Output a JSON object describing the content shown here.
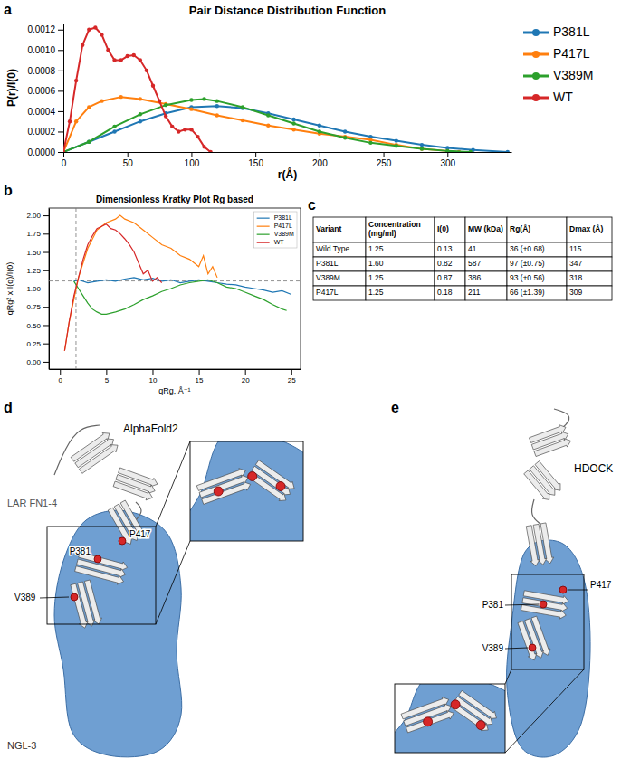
{
  "chart_data": [
    {
      "panel": "a",
      "type": "line",
      "title": "Pair Distance Distribution Function",
      "x_label": "r(Å)",
      "y_label": "P(r)/I(0)",
      "xlim": [
        0,
        350
      ],
      "xticks": [
        0,
        50,
        100,
        150,
        200,
        250,
        300
      ],
      "ylim": [
        0,
        0.00126
      ],
      "yticks": [
        {
          "value": 0,
          "label": "0.0000"
        },
        {
          "value": 0.0002,
          "label": "0.0002"
        },
        {
          "value": 0.0004,
          "label": "0.0004"
        },
        {
          "value": 0.0006,
          "label": "0.0006"
        },
        {
          "value": 0.0008,
          "label": "0.0008"
        },
        {
          "value": 0.001,
          "label": "0.0010"
        },
        {
          "value": 0.0012,
          "label": "0.0012"
        }
      ],
      "grid": false,
      "legend": "right",
      "marker": "circle",
      "series": [
        {
          "name": "P381L",
          "color": "#1f77b4",
          "x": [
            0,
            20,
            40,
            60,
            80,
            100,
            120,
            140,
            160,
            180,
            200,
            220,
            240,
            260,
            280,
            300,
            320,
            347
          ],
          "values": [
            0,
            0.0001,
            0.0002,
            0.0003,
            0.00038,
            0.00044,
            0.00045,
            0.00043,
            0.00038,
            0.00032,
            0.00026,
            0.0002,
            0.00015,
            0.00011,
            7e-05,
            4e-05,
            2e-05,
            0
          ]
        },
        {
          "name": "P417L",
          "color": "#ff7f0e",
          "x": [
            0,
            10,
            20,
            30,
            45,
            60,
            80,
            100,
            120,
            140,
            160,
            180,
            200,
            220,
            240,
            260,
            280,
            300,
            309
          ],
          "values": [
            0,
            0.0003,
            0.00044,
            0.0005,
            0.00054,
            0.00052,
            0.00047,
            0.00042,
            0.00036,
            0.00031,
            0.00026,
            0.00022,
            0.00018,
            0.00015,
            0.00012,
            7e-05,
            3e-05,
            1e-05,
            0
          ]
        },
        {
          "name": "V389M",
          "color": "#2ca02c",
          "x": [
            0,
            20,
            40,
            60,
            80,
            100,
            110,
            120,
            140,
            160,
            180,
            200,
            220,
            240,
            260,
            280,
            300,
            318
          ],
          "values": [
            0,
            0.0001,
            0.00025,
            0.00037,
            0.00046,
            0.00051,
            0.00052,
            0.0005,
            0.00044,
            0.00036,
            0.00028,
            0.0002,
            0.00014,
            9e-05,
            6e-05,
            3e-05,
            1e-05,
            0
          ]
        },
        {
          "name": "WT",
          "color": "#d62728",
          "x": [
            0,
            5,
            10,
            15,
            20,
            25,
            30,
            35,
            40,
            45,
            50,
            55,
            60,
            65,
            70,
            75,
            80,
            85,
            90,
            95,
            100,
            105,
            110,
            115
          ],
          "values": [
            0,
            0.0003,
            0.0007,
            0.00105,
            0.0012,
            0.00122,
            0.00115,
            0.001,
            0.0009,
            0.0009,
            0.00094,
            0.00095,
            0.0009,
            0.0008,
            0.00065,
            0.0005,
            0.00035,
            0.00025,
            0.0002,
            0.00022,
            0.00022,
            0.00015,
            5e-05,
            0
          ]
        }
      ]
    },
    {
      "panel": "b",
      "type": "line",
      "title": "Dimensionless Kratky Plot Rg based",
      "x_label": "qRg, Å⁻¹",
      "y_label": "qRg² x I(q)/I(0)",
      "xlim": [
        -1.2,
        26
      ],
      "xticks": [
        0,
        5,
        10,
        15,
        20,
        25
      ],
      "ylim": [
        -0.1,
        2.1
      ],
      "yticks": [
        {
          "value": 0,
          "label": "0.00"
        },
        {
          "value": 0.25,
          "label": "0.25"
        },
        {
          "value": 0.5,
          "label": "0.50"
        },
        {
          "value": 0.75,
          "label": "0.75"
        },
        {
          "value": 1,
          "label": "1.00"
        },
        {
          "value": 1.25,
          "label": "1.25"
        },
        {
          "value": 1.5,
          "label": "1.50"
        },
        {
          "value": 1.75,
          "label": "1.75"
        },
        {
          "value": 2,
          "label": "2.00"
        }
      ],
      "vlines": [
        1.732
      ],
      "hlines": [
        1.104
      ],
      "grid": false,
      "legend": "upper right",
      "series": [
        {
          "name": "P381L",
          "color": "#1f77b4",
          "x": [
            1.5,
            2,
            3,
            4,
            5,
            6,
            7,
            8,
            9,
            10,
            11,
            12,
            13,
            14,
            15,
            16,
            17,
            18,
            19,
            20,
            21,
            22,
            23,
            24,
            25
          ],
          "values": [
            1.1,
            1.12,
            1.08,
            1.1,
            1.12,
            1.1,
            1.13,
            1.15,
            1.12,
            1.14,
            1.1,
            1.12,
            1.08,
            1.1,
            1.12,
            1.1,
            1.08,
            1.06,
            1.05,
            1.02,
            1.0,
            0.98,
            0.95,
            0.97,
            0.92
          ]
        },
        {
          "name": "P417L",
          "color": "#ff7f0e",
          "x": [
            0.5,
            1,
            2,
            3,
            4,
            5,
            6,
            6.5,
            7,
            8,
            9,
            10,
            11,
            12,
            13,
            14,
            15,
            15.5,
            16,
            16.5,
            17
          ],
          "values": [
            0.15,
            0.55,
            1.15,
            1.55,
            1.8,
            1.9,
            1.95,
            2.0,
            1.95,
            1.9,
            1.8,
            1.7,
            1.6,
            1.55,
            1.45,
            1.4,
            1.3,
            1.45,
            1.2,
            1.3,
            1.15
          ]
        },
        {
          "name": "V389M",
          "color": "#2ca02c",
          "x": [
            1.5,
            2,
            2.5,
            3,
            3.5,
            4,
            4.5,
            5,
            6,
            7,
            8,
            9,
            10,
            11,
            12,
            13,
            14,
            15,
            16,
            17,
            18,
            19,
            20,
            21,
            22,
            23,
            24,
            24.5
          ],
          "values": [
            1.1,
            1.0,
            0.9,
            0.8,
            0.72,
            0.68,
            0.65,
            0.65,
            0.68,
            0.72,
            0.78,
            0.85,
            0.9,
            0.96,
            1.0,
            1.05,
            1.08,
            1.1,
            1.12,
            1.08,
            1.02,
            1.0,
            0.95,
            0.9,
            0.85,
            0.78,
            0.72,
            0.7
          ]
        },
        {
          "name": "WT",
          "color": "#d62728",
          "x": [
            0.5,
            1,
            1.5,
            2,
            2.5,
            3,
            3.5,
            4,
            4.5,
            5,
            5.5,
            6,
            6.5,
            7,
            7.5,
            8,
            8.5,
            9,
            9.5,
            10,
            10.5,
            11
          ],
          "values": [
            0.15,
            0.55,
            0.9,
            1.15,
            1.4,
            1.6,
            1.72,
            1.82,
            1.85,
            1.88,
            1.82,
            1.8,
            1.75,
            1.68,
            1.6,
            1.5,
            1.35,
            1.2,
            1.25,
            1.1,
            1.15,
            1.08
          ]
        }
      ]
    }
  ],
  "table": {
    "panel": "c",
    "columns": [
      "Variant",
      "Concentration (mg/ml)",
      "I(0)",
      "MW (kDa)",
      "Rg(Å)",
      "Dmax (Å)"
    ],
    "rows": [
      [
        "Wild Type",
        "1.25",
        "0.13",
        "41",
        "36 (±0.68)",
        "115"
      ],
      [
        "P381L",
        "1.60",
        "0.82",
        "587",
        "97 (±0.75)",
        "347"
      ],
      [
        "V389M",
        "1.25",
        "0.87",
        "386",
        "93 (±0.56)",
        "318"
      ],
      [
        "P417L",
        "1.25",
        "0.18",
        "211",
        "66 (±1.39)",
        "309"
      ]
    ]
  },
  "structures": [
    {
      "panel": "d",
      "method": "AlphaFold2",
      "chains": [
        "LAR FN1-4",
        "NGL-3"
      ],
      "sites": [
        "P381",
        "P417",
        "V389"
      ]
    },
    {
      "panel": "e",
      "method": "HDOCK",
      "sites": [
        "P381",
        "P417",
        "V389"
      ]
    }
  ]
}
